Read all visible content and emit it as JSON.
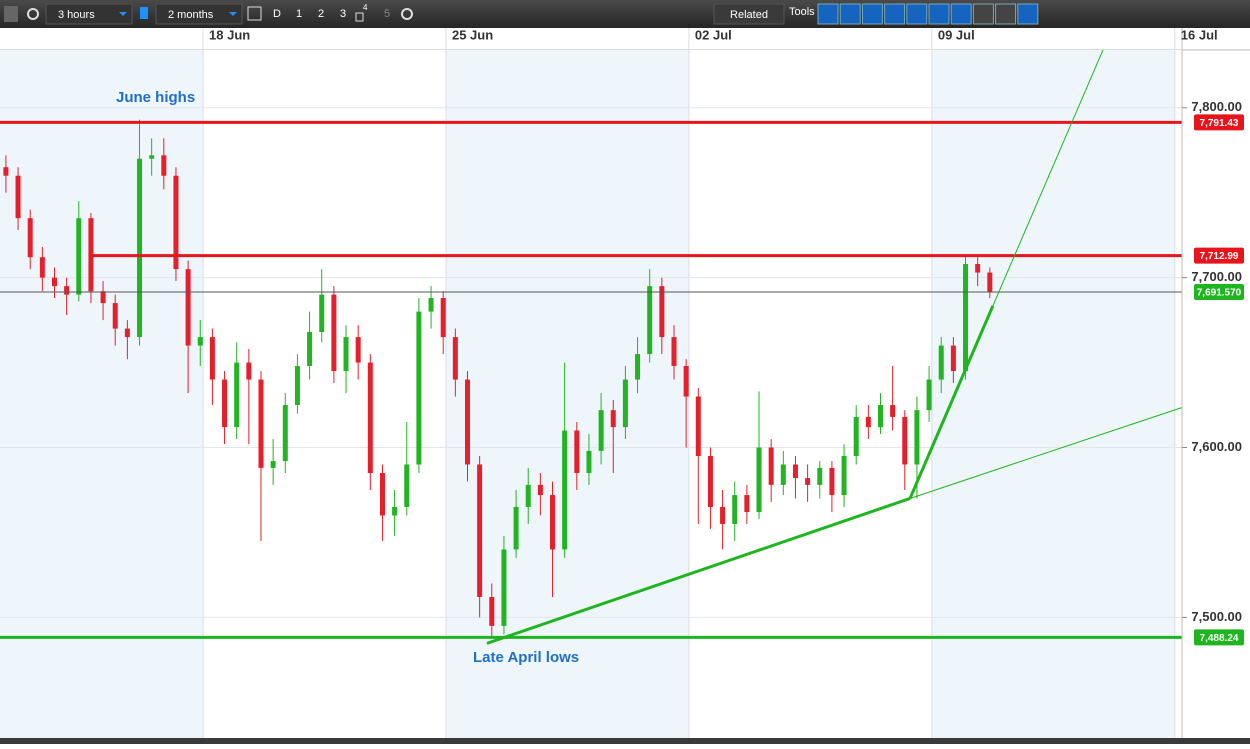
{
  "toolbar": {
    "interval": "3 hours",
    "range": "2 months",
    "buttons": [
      "D",
      "1",
      "2",
      "3",
      "5"
    ],
    "badge": "4",
    "related": "Related",
    "tools": "Tools"
  },
  "chart_data": {
    "type": "candlestick",
    "x": [
      12.32,
      12.67,
      13.02,
      13.37,
      13.72,
      14.07,
      14.42,
      14.77,
      15.12,
      15.47,
      15.82,
      16.17,
      16.52,
      16.87,
      17.22,
      17.57,
      17.92,
      18.27,
      18.62,
      18.97,
      19.32,
      19.67,
      20.02,
      20.37,
      20.72,
      21.07,
      21.42,
      21.77,
      22.12,
      22.47,
      22.82,
      23.17,
      23.52,
      23.87,
      24.22,
      24.57,
      24.92,
      25.27,
      25.62,
      25.97,
      26.32,
      26.67,
      27.02,
      27.37,
      27.72,
      28.07,
      28.42,
      28.77,
      29.12,
      29.47,
      29.82,
      30.17,
      30.52,
      30.87,
      31.22,
      31.57,
      31.92,
      32.27,
      32.62,
      32.97,
      33.32,
      33.67,
      34.02,
      34.37,
      34.72,
      35.07,
      35.42,
      35.77,
      36.12,
      36.47,
      36.82,
      37.17,
      37.52,
      37.87,
      38.22,
      38.57,
      38.92,
      39.27,
      39.62,
      39.97,
      40.32,
      40.67
    ],
    "open": [
      7765,
      7760,
      7735,
      7712,
      7700,
      7695,
      7690,
      7735,
      7692,
      7685,
      7670,
      7665,
      7770,
      7772,
      7760,
      7705,
      7660,
      7665,
      7640,
      7612,
      7650,
      7640,
      7588,
      7592,
      7625,
      7648,
      7668,
      7690,
      7645,
      7665,
      7650,
      7585,
      7560,
      7565,
      7590,
      7680,
      7688,
      7665,
      7640,
      7590,
      7512,
      7495,
      7540,
      7565,
      7578,
      7572,
      7540,
      7610,
      7585,
      7598,
      7622,
      7612,
      7640,
      7655,
      7695,
      7665,
      7648,
      7630,
      7595,
      7565,
      7555,
      7572,
      7562,
      7600,
      7578,
      7590,
      7582,
      7578,
      7588,
      7572,
      7595,
      7618,
      7612,
      7625,
      7618,
      7590,
      7622,
      7640,
      7660,
      7645,
      7708,
      7703
    ],
    "high": [
      7772,
      7765,
      7740,
      7718,
      7706,
      7700,
      7745,
      7738,
      7698,
      7690,
      7675,
      7793,
      7782,
      7782,
      7765,
      7710,
      7675,
      7670,
      7645,
      7662,
      7658,
      7645,
      7605,
      7632,
      7655,
      7680,
      7705,
      7695,
      7672,
      7672,
      7655,
      7590,
      7575,
      7615,
      7688,
      7695,
      7692,
      7670,
      7645,
      7595,
      7520,
      7548,
      7575,
      7588,
      7585,
      7580,
      7650,
      7615,
      7608,
      7632,
      7628,
      7648,
      7665,
      7705,
      7700,
      7672,
      7652,
      7635,
      7600,
      7575,
      7580,
      7578,
      7633,
      7605,
      7598,
      7595,
      7590,
      7592,
      7592,
      7602,
      7625,
      7625,
      7632,
      7648,
      7622,
      7630,
      7648,
      7665,
      7665,
      7712.99,
      7712,
      7706
    ],
    "low": [
      7750,
      7728,
      7705,
      7692,
      7688,
      7678,
      7686,
      7685,
      7675,
      7660,
      7652,
      7660,
      7760,
      7752,
      7698,
      7632,
      7648,
      7625,
      7602,
      7605,
      7602,
      7545,
      7578,
      7585,
      7620,
      7640,
      7662,
      7638,
      7632,
      7640,
      7575,
      7545,
      7548,
      7560,
      7585,
      7670,
      7655,
      7630,
      7580,
      7500,
      7488.24,
      7490,
      7535,
      7555,
      7560,
      7512,
      7535,
      7575,
      7578,
      7590,
      7585,
      7605,
      7632,
      7650,
      7655,
      7640,
      7600,
      7555,
      7552,
      7540,
      7545,
      7555,
      7558,
      7568,
      7572,
      7570,
      7568,
      7570,
      7562,
      7565,
      7590,
      7605,
      7608,
      7610,
      7575,
      7570,
      7615,
      7632,
      7638,
      7640,
      7695,
      7688
    ],
    "close": [
      7760,
      7735,
      7712,
      7700,
      7695,
      7690,
      7735,
      7692,
      7685,
      7670,
      7665,
      7770,
      7772,
      7760,
      7705,
      7660,
      7665,
      7640,
      7612,
      7650,
      7640,
      7588,
      7592,
      7625,
      7648,
      7668,
      7690,
      7645,
      7665,
      7650,
      7585,
      7560,
      7565,
      7590,
      7680,
      7688,
      7665,
      7640,
      7590,
      7512,
      7495,
      7540,
      7565,
      7578,
      7572,
      7540,
      7610,
      7585,
      7598,
      7622,
      7612,
      7640,
      7655,
      7695,
      7665,
      7648,
      7630,
      7595,
      7565,
      7555,
      7572,
      7562,
      7600,
      7578,
      7590,
      7582,
      7578,
      7588,
      7572,
      7595,
      7618,
      7612,
      7625,
      7618,
      7590,
      7622,
      7640,
      7660,
      7645,
      7708,
      7703,
      7691.57
    ],
    "up_color": "#22b422",
    "down_color": "#e3202b",
    "xlim": [
      12.15,
      46.15
    ],
    "xticks": [
      {
        "value": 18,
        "label": "18 Jun"
      },
      {
        "value": 25,
        "label": "25 Jun"
      },
      {
        "value": 32,
        "label": "02 Jul"
      },
      {
        "value": 39,
        "label": "09 Jul"
      },
      {
        "value": 46,
        "label": "16 Jul"
      }
    ],
    "ylim": [
      7429,
      7834
    ],
    "yticks": [
      {
        "value": 7500,
        "label": "7,500.00"
      },
      {
        "value": 7600,
        "label": "7,600.00"
      },
      {
        "value": 7700,
        "label": "7,700.00"
      },
      {
        "value": 7800,
        "label": "7,800.00"
      }
    ],
    "grid": true,
    "levels": [
      {
        "value": 7791.43,
        "label": "7,791.43",
        "color": "#e8141c",
        "box": "#e8141c",
        "width": 3
      },
      {
        "value": 7712.99,
        "label": "7,712.99",
        "color": "#e8141c",
        "box": "#e8141c",
        "width": 3,
        "from": 14.74
      },
      {
        "value": 7488.24,
        "label": "7,488.24",
        "color": "#1fb51f",
        "box": "#1fb51f",
        "width": 3
      },
      {
        "value": 7691.57,
        "label": "7,691.570",
        "color": "#555555",
        "box": "#1fb51f",
        "width": 1
      }
    ],
    "trendlines": [
      {
        "points": [
          [
            26.18,
            7484.7
          ],
          [
            38.37,
            7570
          ]
        ],
        "color": "#1fb51f",
        "width": 3
      },
      {
        "points": [
          [
            38.37,
            7570
          ],
          [
            46.2,
            7623.5
          ]
        ],
        "color": "#1fb51f",
        "width": 1
      },
      {
        "points": [
          [
            38.37,
            7570
          ],
          [
            40.76,
            7683.5
          ]
        ],
        "color": "#1fb51f",
        "width": 3
      },
      {
        "points": [
          [
            40.76,
            7683.5
          ],
          [
            44.54,
            7862.9
          ]
        ],
        "color": "#1fb51f",
        "width": 1
      }
    ],
    "annotations": [
      "June highs",
      "Late April lows"
    ]
  }
}
